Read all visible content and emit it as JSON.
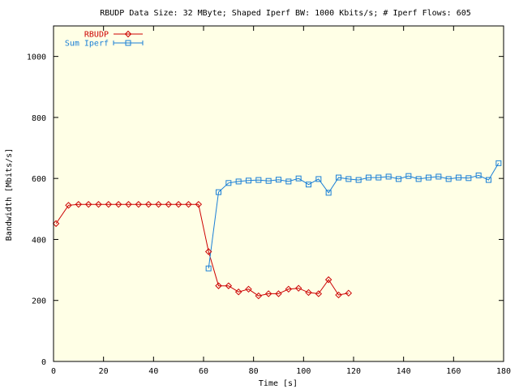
{
  "chart_data": {
    "type": "line",
    "title": "RBUDP Data Size: 32 MByte; Shaped Iperf BW: 1000 Kbits/s; # Iperf Flows: 605",
    "xlabel": "Time [s]",
    "ylabel": "Bandwidth [Mbits/s]",
    "xlim": [
      0,
      180
    ],
    "ylim": [
      0,
      1100
    ],
    "xticks": [
      0,
      20,
      40,
      60,
      80,
      100,
      120,
      140,
      160,
      180
    ],
    "yticks": [
      0,
      200,
      400,
      600,
      800,
      1000
    ],
    "xtick_labels": [
      "0",
      "20",
      "40",
      "60",
      "80",
      "100",
      "120",
      "140",
      "160",
      "180"
    ],
    "ytick_labels": [
      "0",
      "200",
      "400",
      "600",
      "800",
      "1000"
    ],
    "grid": false,
    "legend_position": "top-left",
    "background": "#ffffe6",
    "series": [
      {
        "name": "RBUDP",
        "color": "#cc0000",
        "marker": "diamond",
        "x": [
          1,
          6,
          10,
          14,
          18,
          22,
          26,
          30,
          34,
          38,
          42,
          46,
          50,
          54,
          58,
          62,
          66,
          70,
          74,
          78,
          82,
          86,
          90,
          94,
          98,
          102,
          106,
          110,
          114,
          118
        ],
        "y": [
          452,
          512,
          515,
          515,
          515,
          515,
          515,
          515,
          515,
          515,
          515,
          515,
          515,
          515,
          515,
          360,
          248,
          248,
          228,
          237,
          215,
          222,
          222,
          237,
          240,
          226,
          222,
          268,
          218,
          224
        ]
      },
      {
        "name": "Sum Iperf",
        "color": "#1a7fd6",
        "marker": "square",
        "x": [
          62,
          66,
          70,
          74,
          78,
          82,
          86,
          90,
          94,
          98,
          102,
          106,
          110,
          114,
          118,
          122,
          126,
          130,
          134,
          138,
          142,
          146,
          150,
          154,
          158,
          162,
          166,
          170,
          174,
          178
        ],
        "y": [
          305,
          555,
          585,
          590,
          593,
          595,
          592,
          596,
          590,
          600,
          580,
          598,
          553,
          603,
          598,
          595,
          603,
          603,
          606,
          598,
          608,
          598,
          603,
          606,
          598,
          603,
          601,
          610,
          595,
          650
        ]
      }
    ]
  }
}
